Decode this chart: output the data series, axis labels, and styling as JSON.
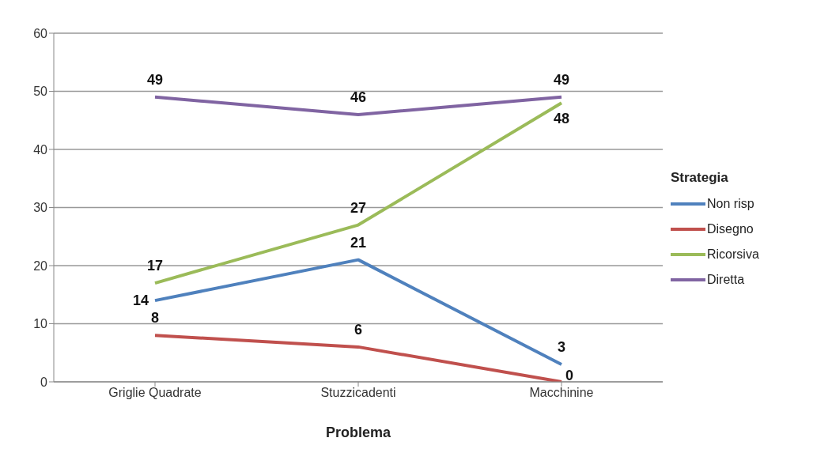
{
  "chart_data": {
    "type": "line",
    "xlabel": "Problema",
    "legend_title": "Strategia",
    "legend": "right",
    "grid": "y",
    "data_labels": true,
    "marker": "none",
    "categories": [
      "Griglie Quadrate",
      "Stuzzicadenti",
      "Macchinine"
    ],
    "ylim": [
      0,
      60
    ],
    "yticks": [
      0,
      10,
      20,
      30,
      40,
      50,
      60
    ],
    "series": [
      {
        "name": "Non risp",
        "color": "#4f81bd",
        "values": [
          14,
          21,
          3
        ]
      },
      {
        "name": "Disegno",
        "color": "#c0504d",
        "values": [
          8,
          6,
          0
        ]
      },
      {
        "name": "Ricorsiva",
        "color": "#9bbb59",
        "values": [
          17,
          27,
          48
        ]
      },
      {
        "name": "Diretta",
        "color": "#8064a2",
        "values": [
          49,
          46,
          49
        ]
      }
    ]
  }
}
